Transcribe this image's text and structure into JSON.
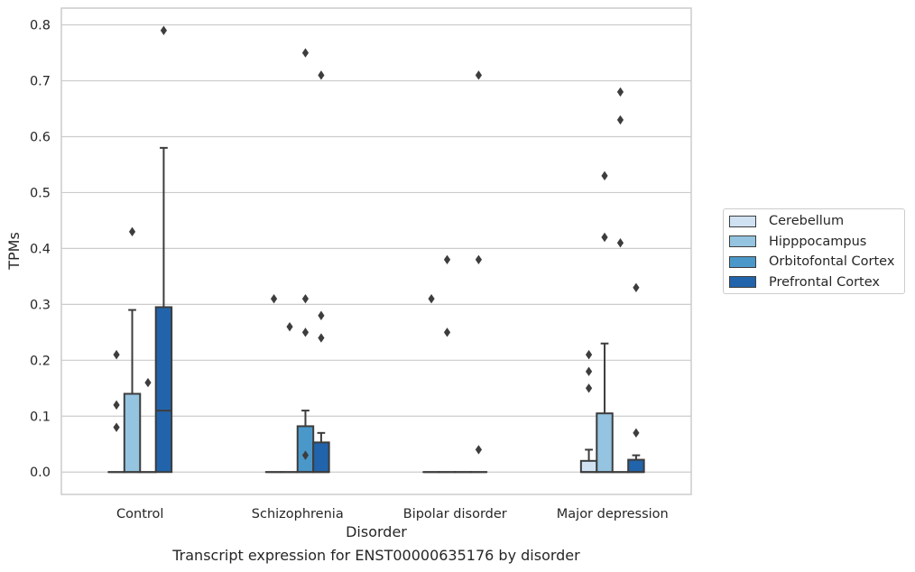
{
  "chart_data": {
    "type": "boxplot",
    "xlabel": "Disorder",
    "ylabel": "TPMs",
    "ylim": [
      -0.04,
      0.83
    ],
    "yticks": [
      "0.0",
      "0.1",
      "0.2",
      "0.3",
      "0.4",
      "0.5",
      "0.6",
      "0.7",
      "0.8"
    ],
    "grid": "horizontal",
    "legend_placement": "right",
    "categories": [
      "Control",
      "Schizophrenia",
      "Bipolar disorder",
      "Major depression"
    ],
    "series": [
      {
        "name": "Cerebellum",
        "color": "#d0e1f2",
        "boxes": [
          {
            "q1": 0,
            "median": 0,
            "q3": 0,
            "whisker_low": 0,
            "whisker_high": 0,
            "outliers": [
              0.08,
              0.12,
              0.21
            ]
          },
          {
            "q1": 0,
            "median": 0,
            "q3": 0,
            "whisker_low": 0,
            "whisker_high": 0,
            "outliers": [
              0.31
            ]
          },
          {
            "q1": 0,
            "median": 0,
            "q3": 0,
            "whisker_low": 0,
            "whisker_high": 0,
            "outliers": [
              0.31
            ]
          },
          {
            "q1": 0,
            "median": 0,
            "q3": 0.02,
            "whisker_low": 0,
            "whisker_high": 0.04,
            "outliers": [
              0.15,
              0.18,
              0.21
            ]
          }
        ]
      },
      {
        "name": "Hipppocampus",
        "color": "#94c4df",
        "boxes": [
          {
            "q1": 0,
            "median": 0,
            "q3": 0.14,
            "whisker_low": 0,
            "whisker_high": 0.29,
            "outliers": [
              0.43
            ]
          },
          {
            "q1": 0,
            "median": 0,
            "q3": 0,
            "whisker_low": 0,
            "whisker_high": 0,
            "outliers": [
              0.26
            ]
          },
          {
            "q1": 0,
            "median": 0,
            "q3": 0,
            "whisker_low": 0,
            "whisker_high": 0,
            "outliers": [
              0.25,
              0.38
            ]
          },
          {
            "q1": 0,
            "median": 0,
            "q3": 0.105,
            "whisker_low": 0,
            "whisker_high": 0.23,
            "outliers": [
              0.42,
              0.53
            ]
          }
        ]
      },
      {
        "name": "Orbitofontal Cortex",
        "color": "#4a98c9",
        "boxes": [
          {
            "q1": 0,
            "median": 0,
            "q3": 0,
            "whisker_low": 0,
            "whisker_high": 0,
            "outliers": [
              0.16
            ]
          },
          {
            "q1": 0,
            "median": 0,
            "q3": 0.082,
            "whisker_low": 0,
            "whisker_high": 0.11,
            "outliers": [
              0.03,
              0.25,
              0.31,
              0.75
            ]
          },
          {
            "q1": 0,
            "median": 0,
            "q3": 0,
            "whisker_low": 0,
            "whisker_high": 0,
            "outliers": []
          },
          {
            "q1": 0,
            "median": 0,
            "q3": 0,
            "whisker_low": 0,
            "whisker_high": 0,
            "outliers": [
              0.41,
              0.63,
              0.68
            ]
          }
        ]
      },
      {
        "name": "Prefrontal Cortex",
        "color": "#2164ab",
        "boxes": [
          {
            "q1": 0,
            "median": 0.11,
            "q3": 0.295,
            "whisker_low": 0,
            "whisker_high": 0.58,
            "outliers": [
              0.79
            ]
          },
          {
            "q1": 0,
            "median": 0,
            "q3": 0.053,
            "whisker_low": 0,
            "whisker_high": 0.07,
            "outliers": [
              0.24,
              0.28,
              0.71
            ]
          },
          {
            "q1": 0,
            "median": 0,
            "q3": 0,
            "whisker_low": 0,
            "whisker_high": 0,
            "outliers": [
              0.04,
              0.38,
              0.71
            ]
          },
          {
            "q1": 0,
            "median": 0,
            "q3": 0.022,
            "whisker_low": 0,
            "whisker_high": 0.03,
            "outliers": [
              0.07,
              0.33
            ]
          }
        ]
      }
    ]
  },
  "caption": "Transcript expression for ENST00000635176 by disorder"
}
